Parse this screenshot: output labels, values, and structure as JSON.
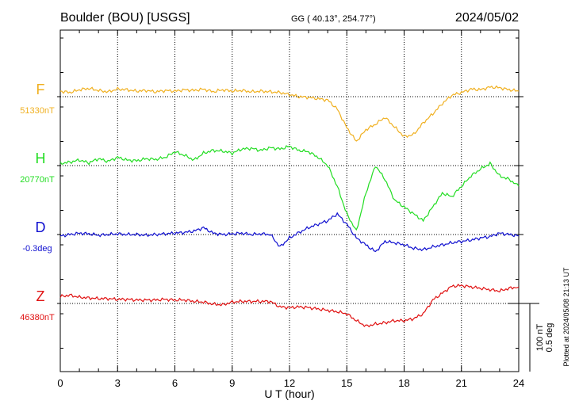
{
  "header": {
    "station": "Boulder (BOU)  [USGS]",
    "coords": "GG ( 40.13°, 254.77°)",
    "date": "2024/05/02"
  },
  "footer_note": "Plotted at 2024/05/08 21:13 UT",
  "scale_bar": {
    "line1": "100 nT",
    "line2": "0.5 deg"
  },
  "chart_data": {
    "type": "line",
    "title": "Boulder (BOU)  [USGS]",
    "xlabel": "U T (hour)",
    "ylabel": "",
    "xlim": [
      0,
      24
    ],
    "xticks": [
      0,
      3,
      6,
      9,
      12,
      15,
      18,
      21,
      24
    ],
    "xticklabels": [
      "0",
      "3",
      "6",
      "9",
      "12",
      "15",
      "18",
      "21",
      "24"
    ],
    "grid": true,
    "scale": "100 nT per division",
    "series": [
      {
        "name": "F",
        "baseline_label": "51330nT",
        "color": "#f0b020",
        "x": [
          0,
          0.5,
          1,
          1.5,
          2,
          2.5,
          3,
          3.5,
          4,
          4.5,
          5,
          5.5,
          6,
          6.5,
          7,
          7.5,
          8,
          8.5,
          9,
          9.5,
          10,
          10.5,
          11,
          11.5,
          12,
          12.5,
          13,
          13.5,
          14,
          14.5,
          15,
          15.5,
          16,
          16.5,
          17,
          17.5,
          18,
          18.5,
          19,
          19.5,
          20,
          20.5,
          21,
          21.5,
          22,
          22.5,
          23,
          23.5,
          24
        ],
        "values": [
          8,
          6,
          10,
          12,
          9,
          7,
          11,
          10,
          8,
          9,
          7,
          9,
          8,
          10,
          9,
          11,
          7,
          10,
          8,
          9,
          7,
          8,
          7,
          6,
          3,
          0,
          -1,
          -3,
          -5,
          -18,
          -45,
          -65,
          -48,
          -40,
          -30,
          -44,
          -58,
          -55,
          -38,
          -25,
          -10,
          2,
          6,
          11,
          10,
          14,
          13,
          10,
          8
        ]
      },
      {
        "name": "H",
        "baseline_label": "20770nT",
        "color": "#22dd22",
        "x": [
          0,
          0.5,
          1,
          1.5,
          2,
          2.5,
          3,
          3.5,
          4,
          4.5,
          5,
          5.5,
          6,
          6.5,
          7,
          7.5,
          8,
          8.5,
          9,
          9.5,
          10,
          10.5,
          11,
          11.5,
          12,
          12.5,
          13,
          13.5,
          14,
          14.5,
          15,
          15.5,
          16,
          16.5,
          17,
          17.5,
          18,
          18.5,
          19,
          19.5,
          20,
          20.5,
          21,
          21.5,
          22,
          22.5,
          23,
          23.5,
          24
        ],
        "values": [
          3,
          5,
          8,
          4,
          10,
          6,
          12,
          8,
          7,
          10,
          9,
          12,
          20,
          15,
          8,
          18,
          22,
          21,
          18,
          24,
          25,
          22,
          26,
          24,
          28,
          22,
          20,
          12,
          0,
          -30,
          -70,
          -95,
          -40,
          0,
          -20,
          -50,
          -60,
          -70,
          -80,
          -60,
          -40,
          -45,
          -30,
          -15,
          -5,
          3,
          -15,
          -20,
          -30
        ]
      },
      {
        "name": "D",
        "baseline_label": "-0.3deg",
        "color": "#1010d0",
        "x": [
          0,
          0.5,
          1,
          1.5,
          2,
          2.5,
          3,
          3.5,
          4,
          4.5,
          5,
          5.5,
          6,
          6.5,
          7,
          7.5,
          8,
          8.5,
          9,
          9.5,
          10,
          10.5,
          11,
          11.5,
          12,
          12.5,
          13,
          13.5,
          14,
          14.5,
          15,
          15.5,
          16,
          16.5,
          17,
          17.5,
          18,
          18.5,
          19,
          19.5,
          20,
          20.5,
          21,
          21.5,
          22,
          22.5,
          23,
          23.5,
          24
        ],
        "values": [
          -2,
          0,
          2,
          1,
          -1,
          0,
          1,
          0,
          0,
          -1,
          0,
          1,
          2,
          3,
          5,
          10,
          2,
          0,
          1,
          2,
          0,
          1,
          0,
          -18,
          -5,
          3,
          10,
          15,
          20,
          30,
          15,
          -5,
          -15,
          -25,
          -10,
          -12,
          -15,
          -20,
          -22,
          -18,
          -15,
          -12,
          -10,
          -8,
          -5,
          -3,
          2,
          0,
          -2
        ]
      },
      {
        "name": "Z",
        "baseline_label": "46380nT",
        "color": "#e01010",
        "x": [
          0,
          0.5,
          1,
          1.5,
          2,
          2.5,
          3,
          3.5,
          4,
          4.5,
          5,
          5.5,
          6,
          6.5,
          7,
          7.5,
          8,
          8.5,
          9,
          9.5,
          10,
          10.5,
          11,
          11.5,
          12,
          12.5,
          13,
          13.5,
          14,
          14.5,
          15,
          15.5,
          16,
          16.5,
          17,
          17.5,
          18,
          18.5,
          19,
          19.5,
          20,
          20.5,
          21,
          21.5,
          22,
          22.5,
          23,
          23.5,
          24
        ],
        "values": [
          10,
          12,
          9,
          8,
          7,
          7,
          6,
          6,
          5,
          5,
          5,
          6,
          5,
          5,
          3,
          2,
          -1,
          -2,
          2,
          3,
          3,
          3,
          3,
          -5,
          -6,
          -5,
          -6,
          -8,
          -10,
          -12,
          -15,
          -25,
          -33,
          -30,
          -28,
          -25,
          -25,
          -22,
          -15,
          5,
          15,
          25,
          26,
          24,
          22,
          20,
          18,
          22,
          24
        ]
      }
    ]
  }
}
